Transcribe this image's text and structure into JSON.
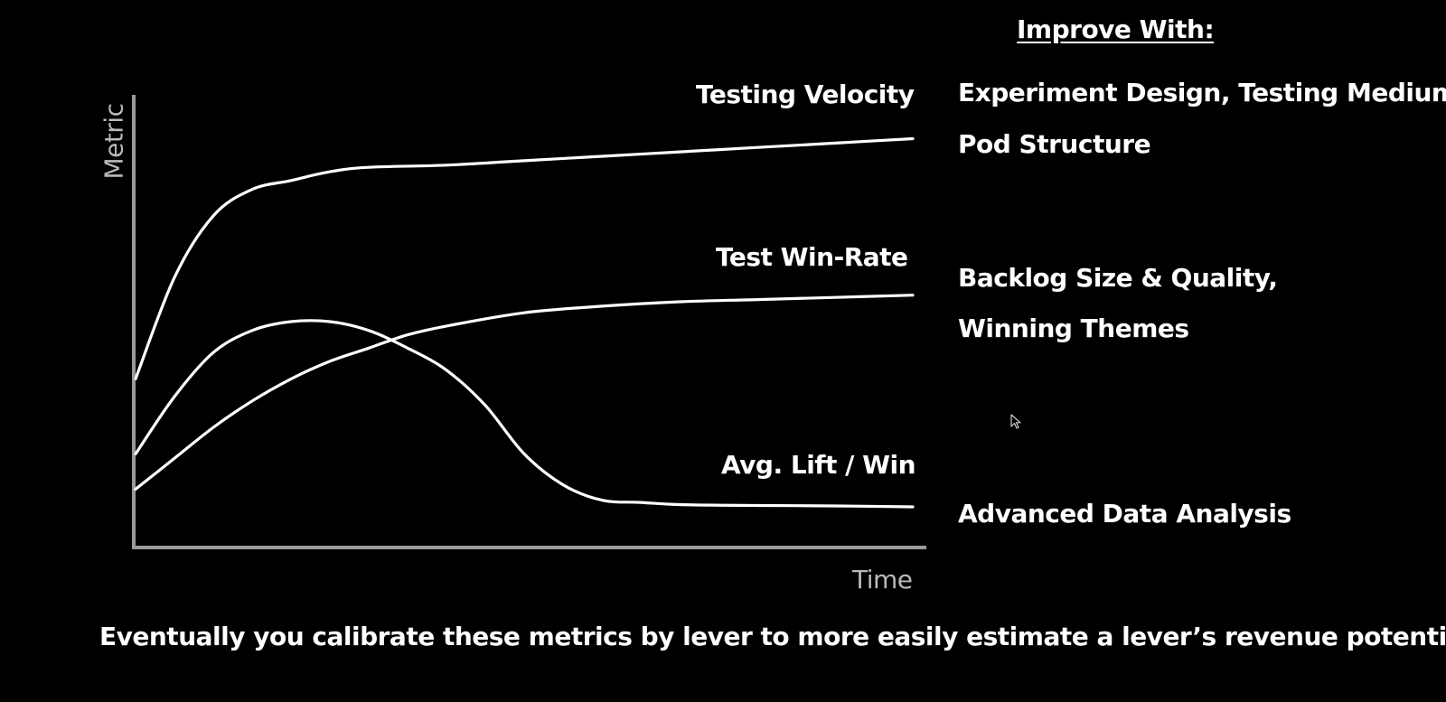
{
  "chart_data": {
    "type": "line",
    "xlabel": "Time",
    "ylabel": "Metric",
    "grid": false,
    "axis_ticks": false,
    "series": [
      {
        "name": "Testing Velocity",
        "color": "#ffffff",
        "x": [
          0,
          0.05,
          0.1,
          0.15,
          0.2,
          0.25,
          0.3,
          0.4,
          0.5,
          0.6,
          0.7,
          0.8,
          0.9,
          1.0
        ],
        "y": [
          0.37,
          0.6,
          0.74,
          0.8,
          0.82,
          0.84,
          0.85,
          0.855,
          0.865,
          0.875,
          0.885,
          0.895,
          0.905,
          0.915
        ]
      },
      {
        "name": "Test Win-Rate",
        "color": "#ffffff",
        "x": [
          0,
          0.05,
          0.1,
          0.15,
          0.2,
          0.25,
          0.3,
          0.35,
          0.4,
          0.5,
          0.6,
          0.7,
          0.8,
          0.9,
          1.0
        ],
        "y": [
          0.12,
          0.19,
          0.26,
          0.32,
          0.37,
          0.41,
          0.44,
          0.47,
          0.49,
          0.52,
          0.535,
          0.545,
          0.55,
          0.555,
          0.56
        ]
      },
      {
        "name": "Avg. Lift / Win",
        "color": "#ffffff",
        "x": [
          0,
          0.05,
          0.1,
          0.15,
          0.2,
          0.25,
          0.3,
          0.35,
          0.4,
          0.45,
          0.5,
          0.55,
          0.6,
          0.65,
          0.7,
          0.8,
          0.9,
          1.0
        ],
        "y": [
          0.2,
          0.33,
          0.43,
          0.48,
          0.5,
          0.5,
          0.48,
          0.44,
          0.39,
          0.31,
          0.2,
          0.13,
          0.095,
          0.09,
          0.085,
          0.083,
          0.082,
          0.08
        ]
      }
    ],
    "labels": {
      "testing_velocity": "Testing Velocity",
      "test_win_rate": "Test Win-Rate",
      "avg_lift_win": "Avg. Lift / Win"
    }
  },
  "improve": {
    "title": "Improve With:",
    "velocity_lines": [
      "Experiment Design, Testing Medium,",
      "Pod Structure"
    ],
    "winrate_lines": [
      "Backlog Size & Quality,",
      "Winning Themes"
    ],
    "lift_lines": [
      "Advanced Data Analysis"
    ]
  },
  "caption": "Eventually you calibrate these metrics by lever to more easily estimate a lever’s revenue potential",
  "colors": {
    "background": "#000000",
    "curves": "#ffffff",
    "axes": "#9a9a9a",
    "axis_text": "#b9b9b9"
  },
  "icons": {
    "cursor": "mouse-pointer-icon"
  }
}
